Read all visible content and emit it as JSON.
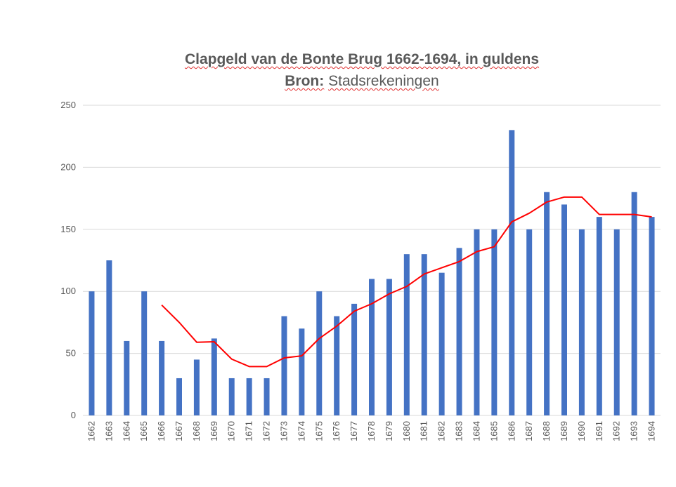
{
  "chart_data": {
    "type": "bar",
    "title": "Clapgeld van de Bonte Brug 1662-1694, in guldens",
    "subtitle_label": "Bron:",
    "subtitle_text": "Stadsrekeningen",
    "xlabel": "",
    "ylabel": "",
    "ylim": [
      0,
      250
    ],
    "yticks": [
      "0",
      "50",
      "100",
      "150",
      "200",
      "250"
    ],
    "grid": true,
    "categories": [
      "1662",
      "1663",
      "1664",
      "1665",
      "1666",
      "1667",
      "1668",
      "1669",
      "1670",
      "1671",
      "1672",
      "1673",
      "1674",
      "1675",
      "1676",
      "1677",
      "1678",
      "1679",
      "1680",
      "1681",
      "1682",
      "1683",
      "1684",
      "1685",
      "1686",
      "1687",
      "1688",
      "1689",
      "1690",
      "1691",
      "1692",
      "1693",
      "1694"
    ],
    "series": [
      {
        "type": "bar",
        "color": "#4472C4",
        "values": [
          100,
          125,
          60,
          100,
          60,
          30,
          45,
          62,
          30,
          30,
          30,
          80,
          70,
          100,
          80,
          90,
          110,
          110,
          130,
          130,
          115,
          135,
          150,
          150,
          230,
          150,
          180,
          170,
          150,
          160,
          150,
          180,
          160
        ]
      },
      {
        "type": "line",
        "color": "#FF0000",
        "values": [
          null,
          null,
          null,
          null,
          89,
          75,
          59,
          59.4,
          45.4,
          39.4,
          39.4,
          46.4,
          48,
          62,
          72,
          84,
          90,
          98,
          104,
          114,
          119,
          124,
          132,
          136,
          156,
          163,
          172,
          176,
          176,
          162,
          162,
          162,
          160
        ]
      }
    ]
  }
}
